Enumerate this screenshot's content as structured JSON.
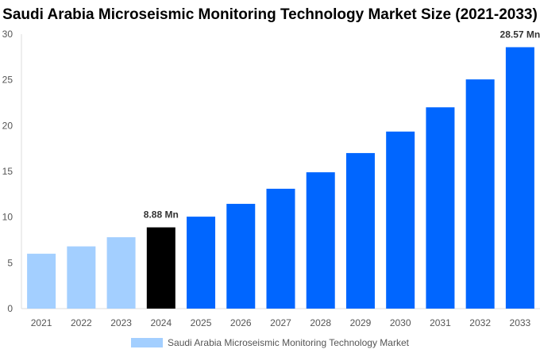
{
  "chart_data": {
    "type": "bar",
    "title": "Saudi Arabia Microseismic Monitoring Technology Market Size (2021-2033)",
    "categories": [
      "2021",
      "2022",
      "2023",
      "2024",
      "2025",
      "2026",
      "2027",
      "2028",
      "2029",
      "2030",
      "2031",
      "2032",
      "2033"
    ],
    "series": [
      {
        "name": "Saudi Arabia Microseismic Monitoring Technology Market",
        "values": [
          6.0,
          6.8,
          7.8,
          8.88,
          10.05,
          11.45,
          13.1,
          14.9,
          17.0,
          19.35,
          22.0,
          25.05,
          28.57
        ]
      }
    ],
    "bar_colors": [
      "#a3cfff",
      "#a3cfff",
      "#a3cfff",
      "#000000",
      "#0066ff",
      "#0066ff",
      "#0066ff",
      "#0066ff",
      "#0066ff",
      "#0066ff",
      "#0066ff",
      "#0066ff",
      "#0066ff"
    ],
    "data_labels": [
      {
        "index": 3,
        "text": "8.88 Mn"
      },
      {
        "index": 12,
        "text": "28.57 Mn"
      }
    ],
    "yticks": [
      "0",
      "5",
      "10",
      "15",
      "20",
      "25",
      "30"
    ],
    "ylim": [
      0,
      30
    ],
    "xlabel": "",
    "ylabel": "",
    "grid": false,
    "legend_position": "bottom",
    "legend_color": "#a3cfff"
  }
}
